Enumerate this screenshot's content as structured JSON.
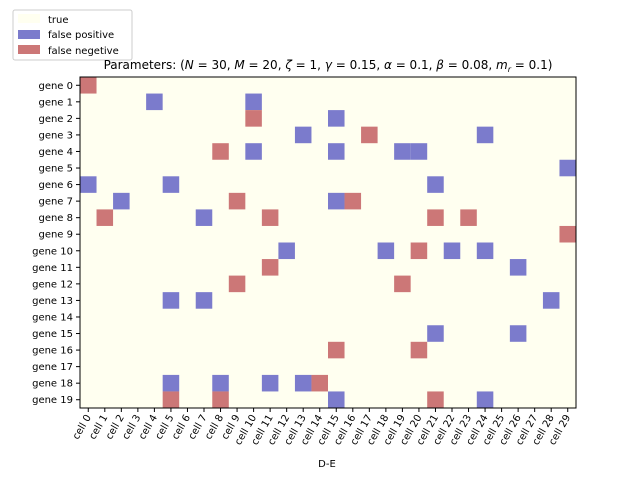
{
  "chart_data": {
    "type": "heatmap",
    "title": "Parameters: (N = 30, M = 20, ζ = 1, γ = 0.15, α = 0.1, β = 0.08, m_r = 0.1)",
    "title_parts": {
      "prefix": "Parameters: (",
      "N": "N",
      "N_val": " = 30, ",
      "M": "M",
      "M_val": " = 20, ",
      "zeta": "ζ",
      "zeta_val": " = 1, ",
      "gamma": "γ",
      "gamma_val": " = 0.15, ",
      "alpha": "α",
      "alpha_val": " = 0.1, ",
      "beta": "β",
      "beta_val": " = 0.08, ",
      "m": "m",
      "m_sub": "r",
      "m_val": " = 0.1)"
    },
    "xlabel": "D-E",
    "ylabel": "",
    "x_categories": [
      "cell 0",
      "cell 1",
      "cell 2",
      "cell 3",
      "cell 4",
      "cell 5",
      "cell 6",
      "cell 7",
      "cell 8",
      "cell 9",
      "cell 10",
      "cell 11",
      "cell 12",
      "cell 13",
      "cell 14",
      "cell 15",
      "cell 16",
      "cell 17",
      "cell 18",
      "cell 19",
      "cell 20",
      "cell 21",
      "cell 22",
      "cell 23",
      "cell 24",
      "cell 25",
      "cell 26",
      "cell 27",
      "cell 28",
      "cell 29"
    ],
    "y_categories": [
      "gene 0",
      "gene 1",
      "gene 2",
      "gene 3",
      "gene 4",
      "gene 5",
      "gene 6",
      "gene 7",
      "gene 8",
      "gene 9",
      "gene 10",
      "gene 11",
      "gene 12",
      "gene 13",
      "gene 14",
      "gene 15",
      "gene 16",
      "gene 17",
      "gene 18",
      "gene 19"
    ],
    "legend": {
      "placement": "top-left",
      "entries": [
        {
          "label": "true",
          "color": "#fffff0"
        },
        {
          "label": "false positive",
          "color": "#7b7bcc"
        },
        {
          "label": "false negetive",
          "color": "#cc7777"
        }
      ]
    },
    "colors": {
      "true": "#fffff0",
      "false_positive": "#7b7bcc",
      "false_negative": "#cc7777"
    },
    "false_positive": [
      [
        1,
        4
      ],
      [
        1,
        10
      ],
      [
        2,
        15
      ],
      [
        3,
        13
      ],
      [
        3,
        24
      ],
      [
        4,
        10
      ],
      [
        4,
        15
      ],
      [
        4,
        19
      ],
      [
        4,
        20
      ],
      [
        5,
        29
      ],
      [
        6,
        0
      ],
      [
        6,
        5
      ],
      [
        6,
        21
      ],
      [
        7,
        2
      ],
      [
        7,
        15
      ],
      [
        8,
        7
      ],
      [
        10,
        12
      ],
      [
        10,
        18
      ],
      [
        10,
        22
      ],
      [
        10,
        24
      ],
      [
        11,
        26
      ],
      [
        13,
        5
      ],
      [
        13,
        7
      ],
      [
        13,
        28
      ],
      [
        15,
        21
      ],
      [
        15,
        26
      ],
      [
        18,
        5
      ],
      [
        18,
        8
      ],
      [
        18,
        11
      ],
      [
        18,
        13
      ],
      [
        19,
        15
      ],
      [
        19,
        24
      ]
    ],
    "false_negative": [
      [
        0,
        0
      ],
      [
        2,
        10
      ],
      [
        3,
        17
      ],
      [
        4,
        8
      ],
      [
        7,
        9
      ],
      [
        7,
        16
      ],
      [
        8,
        1
      ],
      [
        8,
        11
      ],
      [
        8,
        21
      ],
      [
        8,
        23
      ],
      [
        9,
        29
      ],
      [
        10,
        20
      ],
      [
        11,
        11
      ],
      [
        12,
        9
      ],
      [
        12,
        19
      ],
      [
        16,
        15
      ],
      [
        16,
        20
      ],
      [
        18,
        14
      ],
      [
        19,
        5
      ],
      [
        19,
        8
      ],
      [
        19,
        21
      ]
    ]
  }
}
